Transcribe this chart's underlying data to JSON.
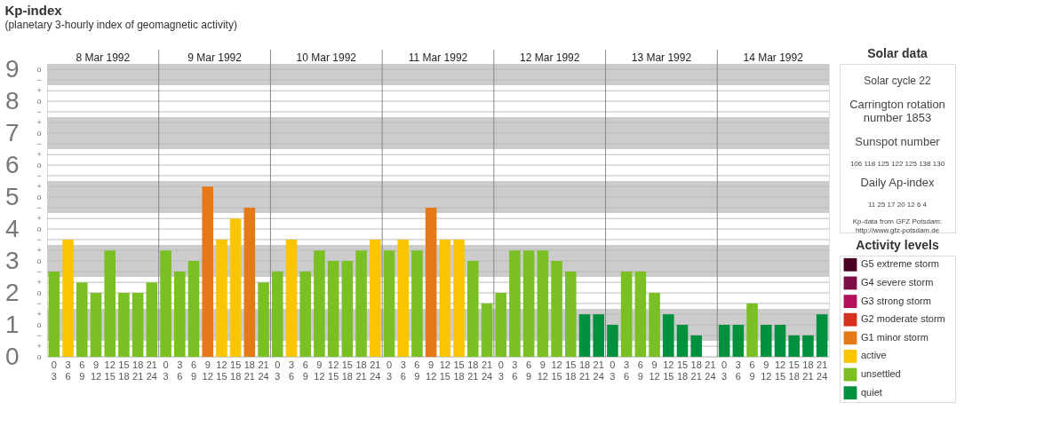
{
  "chart_data": [
    {
      "type": "bar",
      "title": "Kp-index",
      "subtitle": "(planetary 3-hourly index of geomagnetic activity)",
      "legend_title": "Activity levels",
      "legend": "right",
      "grid": true,
      "annotations": [
        "8 Mar 1992",
        "9 Mar 1992",
        "10 Mar 1992",
        "11 Mar 1992",
        "12 Mar 1992",
        "13 Mar 1992",
        "14 Mar 1992",
        "o",
        "+",
        "−",
        "o",
        "+",
        "−",
        "o",
        "+",
        "−",
        "o",
        "+",
        "−",
        "o",
        "+",
        "−",
        "o",
        "+",
        "−",
        "o",
        "+",
        "−",
        "o",
        "+",
        "−",
        "o",
        "+",
        "−",
        "o"
      ],
      "categories": [
        "0\n3",
        "3\n6",
        "6\n9",
        "9\n12",
        "12\n15",
        "15\n18",
        "18\n21",
        "21\n24",
        "0\n3",
        "3\n6",
        "6\n9",
        "9\n12",
        "12\n15",
        "15\n18",
        "18\n21",
        "21\n24",
        "0\n3",
        "3\n6",
        "6\n9",
        "9\n12",
        "12\n15",
        "15\n18",
        "18\n21",
        "21\n24",
        "0\n3",
        "3\n6",
        "6\n9",
        "9\n12",
        "12\n15",
        "15\n18",
        "18\n21",
        "21\n24",
        "0\n3",
        "3\n6",
        "6\n9",
        "9\n12",
        "12\n15",
        "15\n18",
        "18\n21",
        "21\n24",
        "0\n3",
        "3\n6",
        "6\n9",
        "9\n12",
        "12\n15",
        "15\n18",
        "18\n21",
        "21\n24",
        "0\n3",
        "3\n6",
        "6\n9",
        "9\n12",
        "12\n15",
        "15\n18",
        "18\n21",
        "21\n24"
      ],
      "ylim": [
        0,
        9.17
      ],
      "yticks": [
        0,
        {
          "value": 0.33,
          "label": null
        },
        {
          "value": 0.67,
          "label": null
        },
        1,
        {
          "value": 1.33,
          "label": null
        },
        {
          "value": 1.67,
          "label": null
        },
        2,
        {
          "value": 2.33,
          "label": null
        },
        {
          "value": 2.67,
          "label": null
        },
        3,
        {
          "value": 3.33,
          "label": null
        },
        {
          "value": 3.67,
          "label": null
        },
        4,
        {
          "value": 4.33,
          "label": null
        },
        {
          "value": 4.67,
          "label": null
        },
        5,
        {
          "value": 5.33,
          "label": null
        },
        {
          "value": 5.67,
          "label": null
        },
        6,
        {
          "value": 6.33,
          "label": null
        },
        {
          "value": 6.67,
          "label": null
        },
        7,
        {
          "value": 7.33,
          "label": null
        },
        {
          "value": 7.67,
          "label": null
        },
        8,
        {
          "value": 8.33,
          "label": null
        },
        {
          "value": 8.67,
          "label": null
        },
        9
      ],
      "bands": [
        {
          "axis": "y",
          "from": 0.5,
          "to": 1.5,
          "color": "#cccccc"
        },
        {
          "axis": "y",
          "from": 2.5,
          "to": 3.5,
          "color": "#cccccc"
        },
        {
          "axis": "y",
          "from": 4.5,
          "to": 5.5,
          "color": "#cccccc"
        },
        {
          "axis": "y",
          "from": 6.5,
          "to": 7.5,
          "color": "#cccccc"
        },
        {
          "axis": "y",
          "from": 8.5,
          "to": 9.17,
          "color": "#cccccc"
        }
      ],
      "series": [
        {
          "name": "G5 extreme storm",
          "color": "#4a0022",
          "values": [
            null,
            null,
            null,
            null,
            null,
            null,
            null,
            null,
            null,
            null,
            null,
            null,
            null,
            null,
            null,
            null,
            null,
            null,
            null,
            null,
            null,
            null,
            null,
            null,
            null,
            null,
            null,
            null,
            null,
            null,
            null,
            null,
            null,
            null,
            null,
            null,
            null,
            null,
            null,
            null,
            null,
            null,
            null,
            null,
            null,
            null,
            null,
            null,
            null,
            null,
            null,
            null,
            null,
            null,
            null,
            null
          ]
        },
        {
          "name": "G4 severe storm",
          "color": "#7a1045",
          "values": [
            null,
            null,
            null,
            null,
            null,
            null,
            null,
            null,
            null,
            null,
            null,
            null,
            null,
            null,
            null,
            null,
            null,
            null,
            null,
            null,
            null,
            null,
            null,
            null,
            null,
            null,
            null,
            null,
            null,
            null,
            null,
            null,
            null,
            null,
            null,
            null,
            null,
            null,
            null,
            null,
            null,
            null,
            null,
            null,
            null,
            null,
            null,
            null,
            null,
            null,
            null,
            null,
            null,
            null,
            null,
            null
          ]
        },
        {
          "name": "G3 strong storm",
          "color": "#b3105a",
          "values": [
            null,
            null,
            null,
            null,
            null,
            null,
            null,
            null,
            null,
            null,
            null,
            null,
            null,
            null,
            null,
            null,
            null,
            null,
            null,
            null,
            null,
            null,
            null,
            null,
            null,
            null,
            null,
            null,
            null,
            null,
            null,
            null,
            null,
            null,
            null,
            null,
            null,
            null,
            null,
            null,
            null,
            null,
            null,
            null,
            null,
            null,
            null,
            null,
            null,
            null,
            null,
            null,
            null,
            null,
            null,
            null
          ]
        },
        {
          "name": "G2 moderate storm",
          "color": "#d7301f",
          "values": [
            null,
            null,
            null,
            null,
            null,
            null,
            null,
            null,
            null,
            null,
            null,
            null,
            null,
            null,
            null,
            null,
            null,
            null,
            null,
            null,
            null,
            null,
            null,
            null,
            null,
            null,
            null,
            null,
            null,
            null,
            null,
            null,
            null,
            null,
            null,
            null,
            null,
            null,
            null,
            null,
            null,
            null,
            null,
            null,
            null,
            null,
            null,
            null,
            null,
            null,
            null,
            null,
            null,
            null,
            null,
            null
          ]
        },
        {
          "name": "G1 minor storm",
          "color": "#e57817",
          "values": [
            null,
            null,
            null,
            null,
            null,
            null,
            null,
            null,
            null,
            null,
            null,
            5.33,
            null,
            null,
            4.67,
            null,
            null,
            null,
            null,
            null,
            null,
            null,
            null,
            null,
            null,
            null,
            null,
            4.67,
            null,
            null,
            null,
            null,
            null,
            null,
            null,
            null,
            null,
            null,
            null,
            null,
            null,
            null,
            null,
            null,
            null,
            null,
            null,
            null,
            null,
            null,
            null,
            null,
            null,
            null,
            null,
            null
          ]
        },
        {
          "name": "active",
          "color": "#f8c500",
          "values": [
            null,
            3.67,
            null,
            null,
            null,
            null,
            null,
            null,
            null,
            null,
            null,
            null,
            3.67,
            4.33,
            null,
            null,
            null,
            3.67,
            null,
            null,
            null,
            null,
            null,
            3.67,
            null,
            3.67,
            null,
            null,
            3.67,
            3.67,
            null,
            null,
            null,
            null,
            null,
            null,
            null,
            null,
            null,
            null,
            null,
            null,
            null,
            null,
            null,
            null,
            null,
            null,
            null,
            null,
            null,
            null,
            null,
            null,
            null,
            null
          ]
        },
        {
          "name": "unsettled",
          "color": "#7ac023",
          "values": [
            2.67,
            null,
            2.33,
            2,
            3.33,
            2,
            2,
            2.33,
            3.33,
            2.67,
            3,
            null,
            null,
            null,
            null,
            2.33,
            2.67,
            null,
            2.67,
            3.33,
            3,
            3,
            3.33,
            null,
            3.33,
            null,
            3.33,
            null,
            null,
            null,
            3,
            1.67,
            2,
            3.33,
            3.33,
            3.33,
            3,
            2.67,
            null,
            null,
            null,
            2.67,
            2.67,
            2,
            null,
            null,
            null,
            null,
            null,
            null,
            1.67,
            null,
            null,
            null,
            null,
            null
          ]
        },
        {
          "name": "quiet",
          "color": "#00913f",
          "values": [
            null,
            null,
            null,
            null,
            null,
            null,
            null,
            null,
            null,
            null,
            null,
            null,
            null,
            null,
            null,
            null,
            null,
            null,
            null,
            null,
            null,
            null,
            null,
            null,
            null,
            null,
            null,
            null,
            null,
            null,
            null,
            null,
            null,
            null,
            null,
            null,
            null,
            null,
            1.33,
            1.33,
            1,
            null,
            null,
            null,
            1.33,
            1,
            0.67,
            0,
            1,
            1,
            null,
            1,
            1,
            0.67,
            0.67,
            1.33
          ]
        }
      ]
    },
    {
      "type": "other",
      "title": "Solar data",
      "annotations": [
        "Solar cycle 22",
        "Carrington rotation\nnumber 1853",
        "Sunspot number",
        "106 118 125 122 125 138 130",
        "Daily Ap-index",
        "11   25   17   20   12    6    4",
        "Kp-data from GFZ Potsdam:\nhttp://www.gfz-potsdam.de"
      ]
    }
  ]
}
